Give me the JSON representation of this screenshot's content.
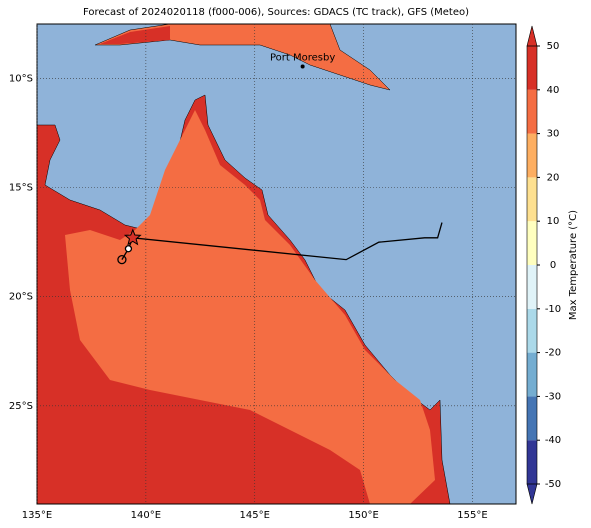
{
  "title": "Forecast of 2024020118 (f000-006), Sources: GDACS (TC track), GFS (Meteo)",
  "map": {
    "xlim": [
      135,
      157
    ],
    "ylim": [
      -29.5,
      -7.5
    ],
    "xticks": [
      {
        "value": 135,
        "label": "135°E"
      },
      {
        "value": 140,
        "label": "140°E"
      },
      {
        "value": 145,
        "label": "145°E"
      },
      {
        "value": 150,
        "label": "150°E"
      },
      {
        "value": 155,
        "label": "155°E"
      }
    ],
    "yticks": [
      {
        "value": -10,
        "label": "10°S"
      },
      {
        "value": -15,
        "label": "15°S"
      },
      {
        "value": -20,
        "label": "20°S"
      },
      {
        "value": -25,
        "label": "25°S"
      }
    ],
    "place": {
      "name": "Port Moresby",
      "lon": 147.2,
      "lat": -9.45
    },
    "track": {
      "lon": [
        153.6,
        153.4,
        152.8,
        150.7,
        149.2,
        139.4,
        139.2,
        138.9
      ],
      "lat": [
        -16.6,
        -17.3,
        -17.3,
        -17.5,
        -18.3,
        -17.3,
        -17.8,
        -18.3
      ]
    }
  },
  "colorbar": {
    "label": "Max Temperature (°C)",
    "ticks": [
      -50,
      -40,
      -30,
      -20,
      -10,
      0,
      10,
      20,
      30,
      40,
      50
    ],
    "colors": [
      "#313695",
      "#4575b4",
      "#74add1",
      "#abd9e9",
      "#e0f3f8",
      "#ffffbf",
      "#fee090",
      "#fdae61",
      "#f46d43",
      "#d73027"
    ]
  }
}
